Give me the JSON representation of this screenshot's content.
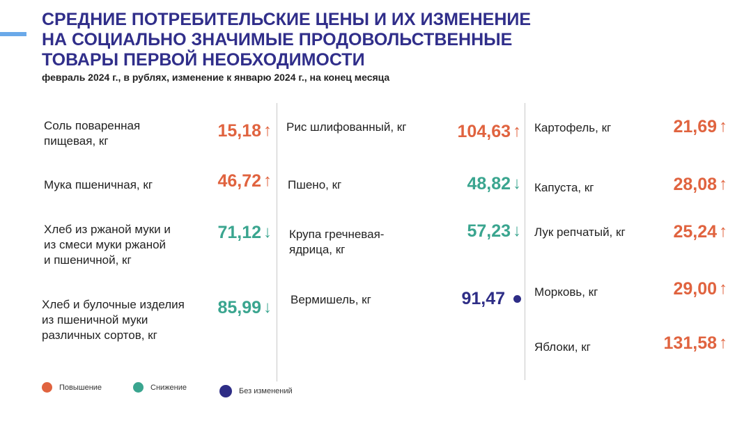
{
  "header": {
    "title_lines": [
      "СРЕДНИЕ ПОТРЕБИТЕЛЬСКИЕ ЦЕНЫ И ИХ ИЗМЕНЕНИЕ",
      "НА СОЦИАЛЬНО ЗНАЧИМЫЕ ПРОДОВОЛЬСТВЕННЫЕ",
      "ТОВАРЫ ПЕРВОЙ НЕОБХОДИМОСТИ"
    ],
    "subtitle": "февраль 2024 г., в рублях, изменение к январю 2024 г., на конец месяца"
  },
  "colors": {
    "up": "#e0633f",
    "down": "#3aa58f",
    "same": "#2e2d86",
    "title": "#302e8a"
  },
  "columns": [
    {
      "items": [
        {
          "label_lines": [
            "Соль поваренная",
            "пищевая, кг"
          ],
          "value": "15,18",
          "trend": "up",
          "arrow": "↑"
        },
        {
          "label_lines": [
            "Мука пшеничная, кг"
          ],
          "value": "46,72",
          "trend": "up",
          "arrow": "↑"
        },
        {
          "label_lines": [
            "Хлеб из ржаной муки и",
            "из смеси муки ржаной",
            "и пшеничной, кг"
          ],
          "value": "71,12",
          "trend": "down",
          "arrow": "↓"
        },
        {
          "label_lines": [
            "Хлеб и булочные изделия",
            "из пшеничной муки",
            "различных сортов, кг"
          ],
          "value": "85,99",
          "trend": "down",
          "arrow": "↓"
        }
      ]
    },
    {
      "items": [
        {
          "label_lines": [
            "Рис шлифованный, кг"
          ],
          "value": "104,63",
          "trend": "up",
          "arrow": "↑"
        },
        {
          "label_lines": [
            "Пшено, кг"
          ],
          "value": "48,82",
          "trend": "down",
          "arrow": "↓"
        },
        {
          "label_lines": [
            "Крупа гречневая-",
            "ядрица, кг"
          ],
          "value": "57,23",
          "trend": "down",
          "arrow": "↓"
        },
        {
          "label_lines": [
            "Вермишель, кг"
          ],
          "value": "91,47",
          "trend": "same",
          "arrow": ""
        }
      ]
    },
    {
      "items": [
        {
          "label_lines": [
            "Картофель, кг"
          ],
          "value": "21,69",
          "trend": "up",
          "arrow": "↑"
        },
        {
          "label_lines": [
            "Капуста, кг"
          ],
          "value": "28,08",
          "trend": "up",
          "arrow": "↑"
        },
        {
          "label_lines": [
            "Лук репчатый, кг"
          ],
          "value": "25,24",
          "trend": "up",
          "arrow": "↑"
        },
        {
          "label_lines": [
            "Морковь, кг"
          ],
          "value": "29,00",
          "trend": "up",
          "arrow": "↑"
        },
        {
          "label_lines": [
            "Яблоки, кг"
          ],
          "value": "131,58",
          "trend": "up",
          "arrow": "↑"
        }
      ]
    }
  ],
  "legend": [
    {
      "label": "Повышение",
      "trend": "up"
    },
    {
      "label": "Снижение",
      "trend": "down"
    },
    {
      "label": "Без изменений",
      "trend": "same"
    }
  ]
}
